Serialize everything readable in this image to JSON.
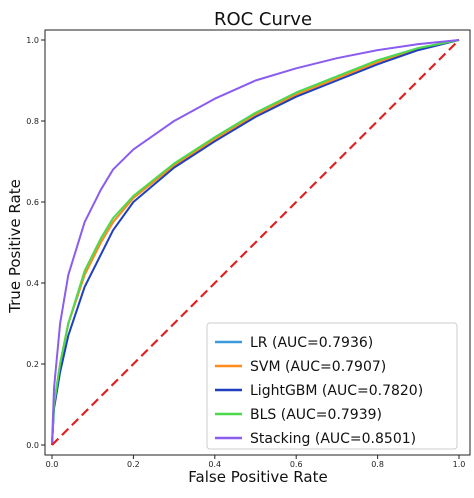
{
  "chart_data": {
    "type": "line",
    "title": "ROC Curve",
    "xlabel": "False Positive Rate",
    "ylabel": "True Positive Rate",
    "xlim": [
      0,
      1
    ],
    "ylim": [
      0,
      1
    ],
    "xticks": [
      "0.0",
      "0.2",
      "0.4",
      "0.6",
      "0.8",
      "1.0"
    ],
    "yticks": [
      "0.0",
      "0.2",
      "0.4",
      "0.6",
      "0.8",
      "1.0"
    ],
    "grid": false,
    "legend_position": "lower-right",
    "series": [
      {
        "name": "LR (AUC=0.7936)",
        "color": "#3a9bdc",
        "points": [
          [
            0,
            0
          ],
          [
            0.005,
            0.1
          ],
          [
            0.02,
            0.2
          ],
          [
            0.04,
            0.3
          ],
          [
            0.08,
            0.42
          ],
          [
            0.12,
            0.5
          ],
          [
            0.15,
            0.55
          ],
          [
            0.2,
            0.61
          ],
          [
            0.3,
            0.69
          ],
          [
            0.4,
            0.76
          ],
          [
            0.5,
            0.82
          ],
          [
            0.6,
            0.87
          ],
          [
            0.7,
            0.91
          ],
          [
            0.8,
            0.95
          ],
          [
            0.9,
            0.98
          ],
          [
            1,
            1
          ]
        ]
      },
      {
        "name": "SVM (AUC=0.7907)",
        "color": "#ff8c1a",
        "points": [
          [
            0,
            0
          ],
          [
            0.005,
            0.1
          ],
          [
            0.02,
            0.2
          ],
          [
            0.04,
            0.3
          ],
          [
            0.08,
            0.42
          ],
          [
            0.12,
            0.5
          ],
          [
            0.15,
            0.55
          ],
          [
            0.2,
            0.61
          ],
          [
            0.3,
            0.69
          ],
          [
            0.4,
            0.755
          ],
          [
            0.5,
            0.815
          ],
          [
            0.6,
            0.865
          ],
          [
            0.7,
            0.905
          ],
          [
            0.8,
            0.945
          ],
          [
            0.9,
            0.978
          ],
          [
            1,
            1
          ]
        ]
      },
      {
        "name": "LightGBM (AUC=0.7820)",
        "color": "#1f3fbf",
        "points": [
          [
            0,
            0
          ],
          [
            0.005,
            0.09
          ],
          [
            0.02,
            0.18
          ],
          [
            0.04,
            0.27
          ],
          [
            0.08,
            0.39
          ],
          [
            0.12,
            0.47
          ],
          [
            0.15,
            0.53
          ],
          [
            0.2,
            0.6
          ],
          [
            0.3,
            0.685
          ],
          [
            0.4,
            0.75
          ],
          [
            0.5,
            0.81
          ],
          [
            0.6,
            0.86
          ],
          [
            0.7,
            0.9
          ],
          [
            0.8,
            0.94
          ],
          [
            0.9,
            0.975
          ],
          [
            1,
            1
          ]
        ]
      },
      {
        "name": "BLS (AUC=0.7939)",
        "color": "#4cd94c",
        "points": [
          [
            0,
            0
          ],
          [
            0.005,
            0.1
          ],
          [
            0.02,
            0.2
          ],
          [
            0.04,
            0.3
          ],
          [
            0.08,
            0.43
          ],
          [
            0.12,
            0.51
          ],
          [
            0.15,
            0.56
          ],
          [
            0.2,
            0.615
          ],
          [
            0.3,
            0.695
          ],
          [
            0.4,
            0.76
          ],
          [
            0.5,
            0.82
          ],
          [
            0.6,
            0.87
          ],
          [
            0.7,
            0.91
          ],
          [
            0.8,
            0.95
          ],
          [
            0.9,
            0.98
          ],
          [
            1,
            1
          ]
        ]
      },
      {
        "name": "Stacking (AUC=0.8501)",
        "color": "#8a5cf0",
        "points": [
          [
            0,
            0
          ],
          [
            0.005,
            0.14
          ],
          [
            0.02,
            0.3
          ],
          [
            0.04,
            0.42
          ],
          [
            0.08,
            0.55
          ],
          [
            0.12,
            0.63
          ],
          [
            0.15,
            0.68
          ],
          [
            0.2,
            0.73
          ],
          [
            0.3,
            0.8
          ],
          [
            0.4,
            0.855
          ],
          [
            0.5,
            0.9
          ],
          [
            0.6,
            0.93
          ],
          [
            0.7,
            0.955
          ],
          [
            0.8,
            0.975
          ],
          [
            0.9,
            0.99
          ],
          [
            1,
            1
          ]
        ]
      }
    ],
    "reference_line": {
      "points": [
        [
          0,
          0
        ],
        [
          1,
          1
        ]
      ],
      "color": "#e02020",
      "style": "dashed"
    }
  }
}
